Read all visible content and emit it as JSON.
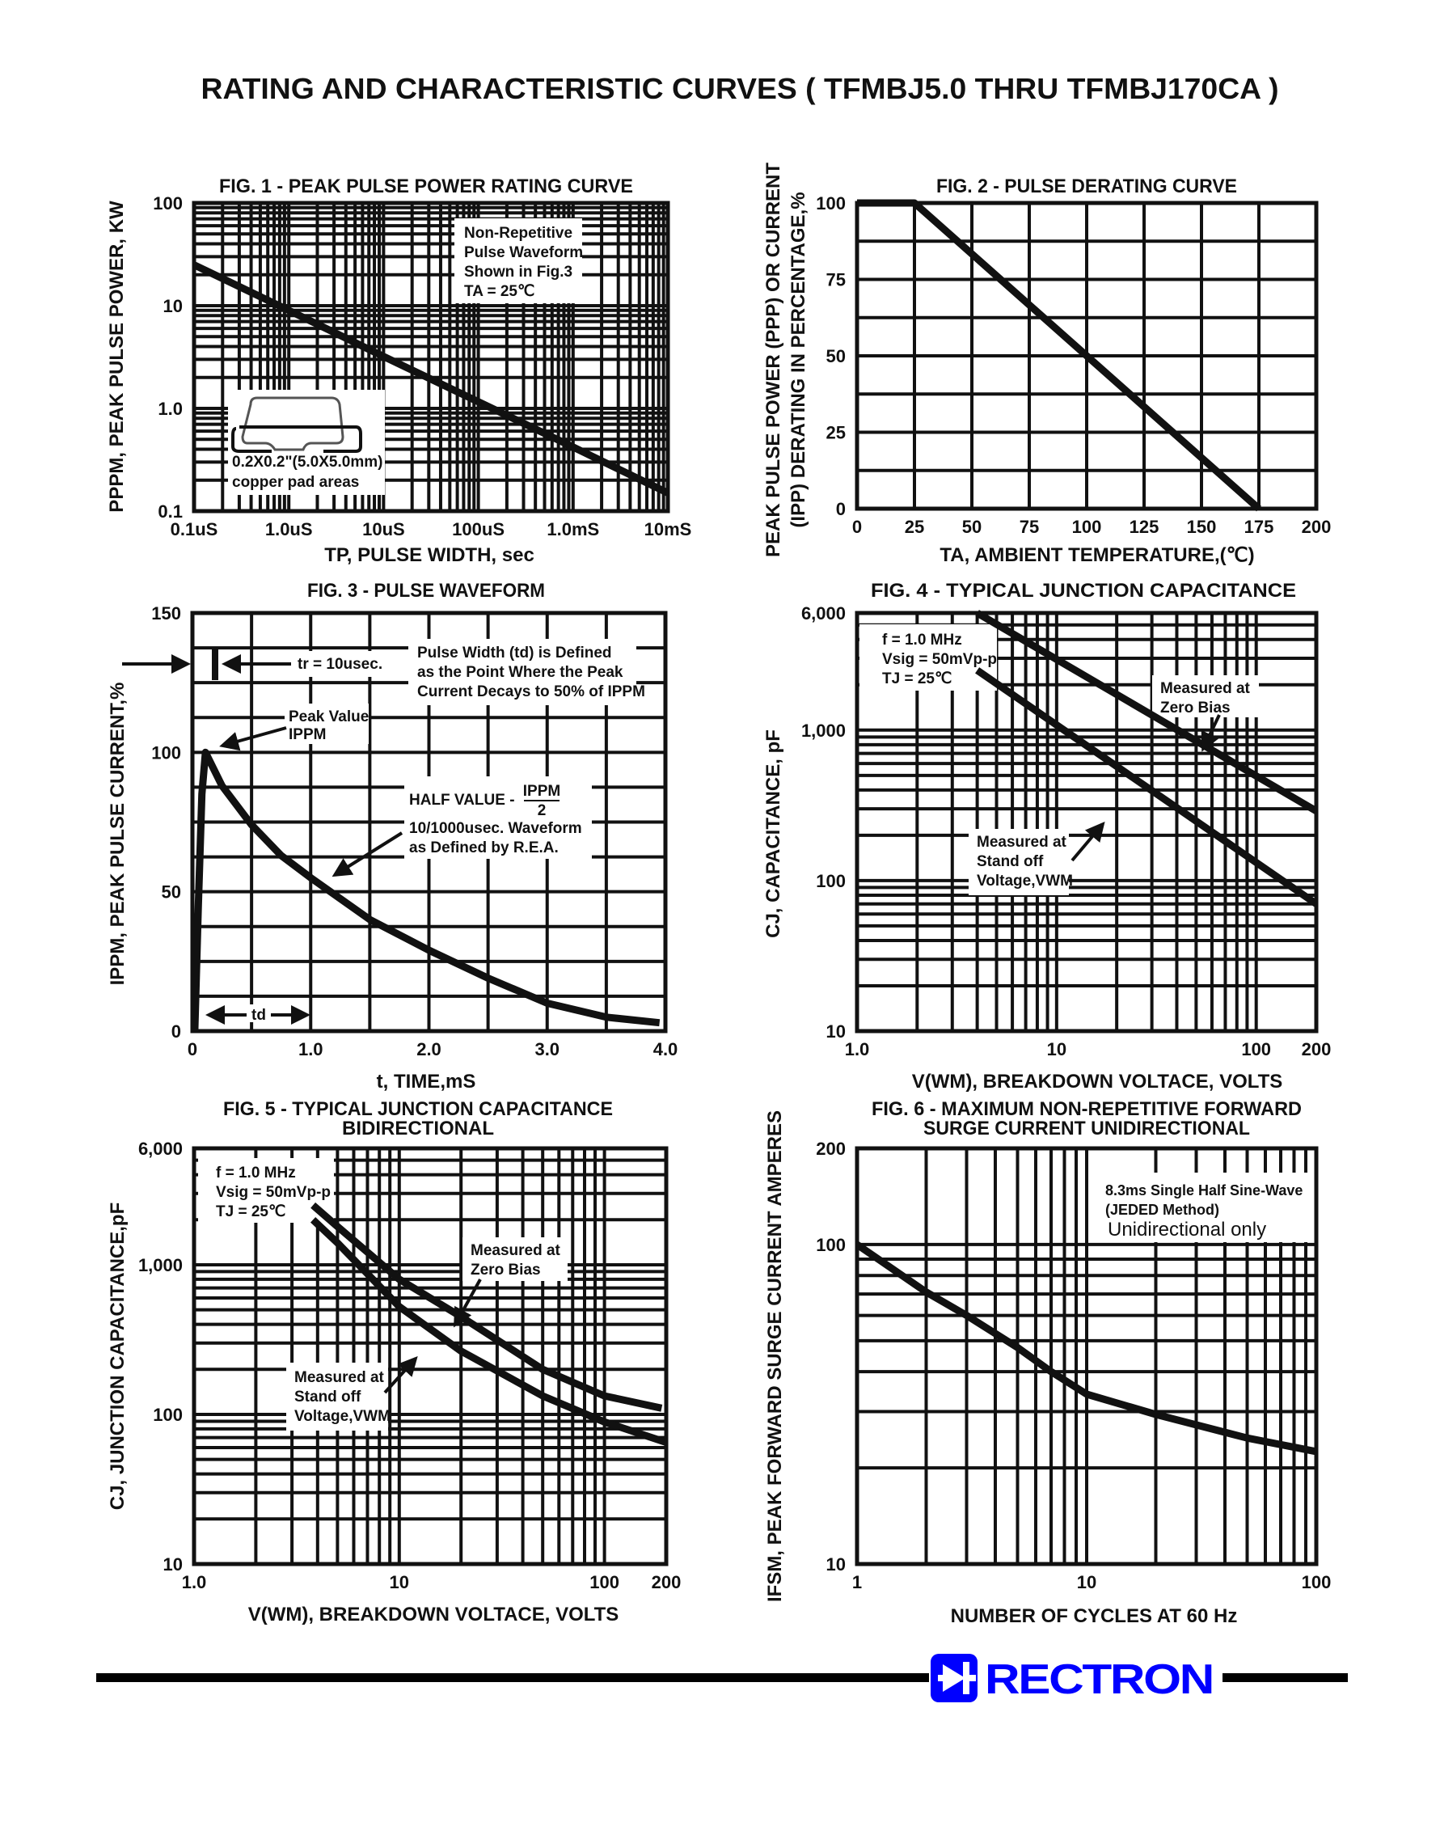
{
  "page": {
    "title": "RATING AND CHARACTERISTIC CURVES ( TFMBJ5.0 THRU TFMBJ170CA )"
  },
  "logo": {
    "text": "RECTRON",
    "color": "#0000ff",
    "icon": "diode-icon"
  },
  "chart_data": [
    {
      "type": "line",
      "title": "FIG. 1 - PEAK PULSE POWER RATING CURVE",
      "xlabel": "TP, PULSE WIDTH, sec",
      "ylabel": "PPPM, PEAK PULSE POWER, KW",
      "x_scale": "log",
      "y_scale": "log",
      "xlim": [
        1e-07,
        0.01
      ],
      "ylim": [
        0.1,
        100
      ],
      "x_ticks": [
        1e-07,
        1e-06,
        1e-05,
        0.0001,
        0.001,
        0.01
      ],
      "x_tick_labels": [
        "0.1uS",
        "1.0uS",
        "10uS",
        "100uS",
        "1.0mS",
        "10mS"
      ],
      "y_ticks": [
        0.1,
        1,
        10,
        100
      ],
      "y_tick_labels": [
        "0.1",
        "1.0",
        "10",
        "100"
      ],
      "grid": true,
      "series": [
        {
          "x": [
            1e-07,
            1e-06,
            1e-05,
            0.0001,
            0.001,
            0.01
          ],
          "y": [
            25,
            9.0,
            3.2,
            1.16,
            0.42,
            0.15
          ]
        }
      ],
      "annotations": [
        "Non-Repetitive",
        "Pulse Waveform",
        "Shown in Fig.3",
        "TA = 25℃",
        "0.2X0.2\"(5.0X5.0mm)",
        "copper pad areas"
      ]
    },
    {
      "type": "line",
      "title": "FIG. 2 - PULSE DERATING CURVE",
      "xlabel": "TA, AMBIENT TEMPERATURE,(℃)",
      "ylabel": [
        "PEAK PULSE POWER (PPP) OR CURRENT",
        "(IPP) DERATING IN PERCENTAGE,%"
      ],
      "x_scale": "linear",
      "y_scale": "linear",
      "xlim": [
        0,
        200
      ],
      "ylim": [
        0,
        100
      ],
      "x_ticks": [
        0,
        25,
        50,
        75,
        100,
        125,
        150,
        175,
        200
      ],
      "x_tick_labels": [
        "0",
        "25",
        "50",
        "75",
        "100",
        "125",
        "150",
        "175",
        "200"
      ],
      "y_ticks": [
        0,
        25,
        50,
        75,
        100
      ],
      "y_tick_labels": [
        "0",
        "25",
        "50",
        "75",
        "100"
      ],
      "grid": true,
      "series": [
        {
          "x": [
            0,
            25,
            175
          ],
          "y": [
            100,
            100,
            0
          ]
        }
      ]
    },
    {
      "type": "line",
      "title": "FIG. 3 - PULSE WAVEFORM",
      "xlabel": "t, TIME,mS",
      "ylabel": "IPPM, PEAK PULSE CURRENT,%",
      "x_scale": "linear",
      "y_scale": "linear",
      "xlim": [
        0,
        4.0
      ],
      "ylim": [
        0,
        150
      ],
      "x_ticks": [
        0,
        1,
        2,
        3,
        4
      ],
      "x_tick_labels": [
        "0",
        "1.0",
        "2.0",
        "3.0",
        "4.0"
      ],
      "y_ticks": [
        0,
        50,
        100,
        150
      ],
      "y_tick_labels": [
        "0",
        "50",
        "100",
        "150"
      ],
      "grid": true,
      "series": [
        {
          "x": [
            0.02,
            0.05,
            0.08,
            0.11,
            0.25,
            0.5,
            0.75,
            1.0,
            1.5,
            2.0,
            2.5,
            3.0,
            3.5,
            3.95
          ],
          "y": [
            0,
            45,
            85,
            100,
            88,
            74,
            63,
            55,
            40,
            29,
            19,
            10,
            5,
            3
          ]
        }
      ],
      "annotations": [
        "tr = 10usec.",
        "Pulse Width (td) is Defined",
        "as the Point Where the Peak",
        "Current Decays to 50% of IPPM",
        "Peak Value",
        "IPPM",
        "HALF VALUE -",
        "IPPM",
        "2",
        "10/1000usec. Waveform",
        "as Defined by R.E.A.",
        "td"
      ]
    },
    {
      "type": "line",
      "title": "FIG. 4 - TYPICAL JUNCTION CAPACITANCE",
      "xlabel": "V(WM), BREAKDOWN VOLTACE, VOLTS",
      "ylabel": "CJ, CAPACITANCE, pF",
      "x_scale": "log",
      "y_scale": "log",
      "xlim": [
        1,
        200
      ],
      "ylim": [
        10,
        6000
      ],
      "x_ticks": [
        1,
        10,
        100,
        200
      ],
      "x_tick_labels": [
        "1.0",
        "10",
        "100",
        "200"
      ],
      "y_ticks": [
        10,
        100,
        1000,
        6000
      ],
      "y_tick_labels": [
        "10",
        "100",
        "1,000",
        "6,000"
      ],
      "grid": true,
      "series": [
        {
          "name": "Measured at Zero Bias",
          "x": [
            4,
            200
          ],
          "y": [
            6000,
            290
          ]
        },
        {
          "name": "Measured at Stand off Voltage,VWM",
          "x": [
            4,
            200
          ],
          "y": [
            2500,
            70
          ]
        }
      ],
      "annotations": [
        "f = 1.0 MHz",
        "Vsig = 50mVp-p",
        "TJ = 25℃",
        "Measured at",
        "Zero Bias",
        "Measured at",
        "Stand off",
        "Voltage,VWM"
      ]
    },
    {
      "type": "line",
      "title": [
        "FIG. 5 - TYPICAL JUNCTION CAPACITANCE",
        "BIDIRECTIONAL"
      ],
      "xlabel": "V(WM), BREAKDOWN VOLTACE, VOLTS",
      "ylabel": "CJ, JUNCTION CAPACITANCE,pF",
      "x_scale": "log",
      "y_scale": "log",
      "xlim": [
        1,
        200
      ],
      "ylim": [
        10,
        6000
      ],
      "x_ticks": [
        1,
        10,
        100,
        200
      ],
      "x_tick_labels": [
        "1.0",
        "10",
        "100",
        "200"
      ],
      "y_ticks": [
        10,
        100,
        1000,
        6000
      ],
      "y_tick_labels": [
        "10",
        "100",
        "1,000",
        "6,000"
      ],
      "grid": true,
      "series": [
        {
          "name": "Measured at Zero Bias",
          "x": [
            3.8,
            5,
            10,
            20,
            50,
            100,
            190
          ],
          "y": [
            2500,
            1800,
            800,
            450,
            200,
            133,
            110
          ]
        },
        {
          "name": "Measured at Stand off Voltage,VWM",
          "x": [
            3.8,
            5,
            10,
            20,
            50,
            100,
            200
          ],
          "y": [
            2000,
            1400,
            525,
            265,
            133,
            89,
            65
          ]
        }
      ],
      "annotations": [
        "f = 1.0 MHz",
        "Vsig = 50mVp-p",
        "TJ = 25℃",
        "Measured at",
        "Zero Bias",
        "Measured at",
        "Stand off",
        "Voltage,VWM"
      ]
    },
    {
      "type": "line",
      "title": [
        "FIG. 6 - MAXIMUM NON-REPETITIVE FORWARD",
        "SURGE CURRENT UNIDIRECTIONAL"
      ],
      "xlabel": "NUMBER OF CYCLES AT 60 Hz",
      "ylabel": "IFSM, PEAK FORWARD SURGE CURRENT AMPERES",
      "x_scale": "log",
      "y_scale": "log",
      "xlim": [
        1,
        100
      ],
      "ylim": [
        10,
        200
      ],
      "x_ticks": [
        1,
        10,
        100
      ],
      "x_tick_labels": [
        "1",
        "10",
        "100"
      ],
      "y_ticks": [
        10,
        100,
        200
      ],
      "y_tick_labels": [
        "10",
        "100",
        "200"
      ],
      "grid": true,
      "series": [
        {
          "x": [
            1,
            2,
            3,
            5,
            7,
            10,
            20,
            50,
            100
          ],
          "y": [
            100,
            71,
            60,
            47.6,
            40,
            34,
            29.4,
            24.8,
            22.5
          ]
        }
      ],
      "annotations": [
        "8.3ms Single Half Sine-Wave",
        "(JEDED Method)",
        "Unidirectional only"
      ]
    }
  ]
}
